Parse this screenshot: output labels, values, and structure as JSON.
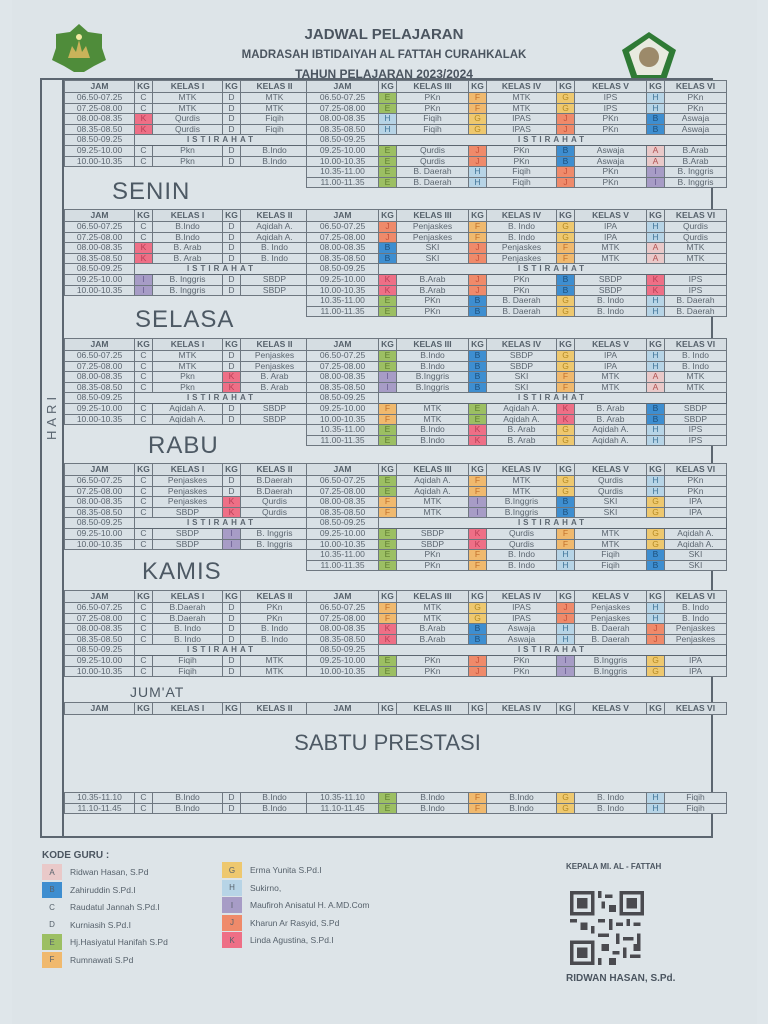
{
  "header": {
    "title": "JADWAL PELAJARAN",
    "school": "MADRASAH IBTIDAIYAH AL FATTAH CURAHKALAK",
    "year": "TAHUN PELAJARAN 2023/2024",
    "logo_left": "kemenag-style-logo",
    "logo_right": "school-crest-logo"
  },
  "side_label": "HARI",
  "columns_left": [
    "JAM",
    "KG",
    "KELAS I",
    "KG",
    "KELAS II"
  ],
  "columns_right": [
    "JAM",
    "KG",
    "KELAS III",
    "KG",
    "KELAS IV",
    "KG",
    "KELAS V",
    "KG",
    "KELAS VI"
  ],
  "break_label": "ISTIRAHAT",
  "days": [
    {
      "name": "SENIN",
      "left_rows": [
        [
          "06.50-07.25",
          "C",
          "MTK",
          "D",
          "MTK"
        ],
        [
          "07.25-08.00",
          "C",
          "MTK",
          "D",
          "MTK"
        ],
        [
          "08.00-08.35",
          "K",
          "Qurdis",
          "D",
          "Fiqih"
        ],
        [
          "08.35-08.50",
          "K",
          "Qurdis",
          "D",
          "Fiqih"
        ],
        [
          "08.50-09.25",
          "BREAK",
          "",
          "",
          ""
        ],
        [
          "09.25-10.00",
          "C",
          "Pkn",
          "D",
          "B.Indo"
        ],
        [
          "10.00-10.35",
          "C",
          "Pkn",
          "D",
          "B.Indo"
        ]
      ],
      "right_rows": [
        [
          "06.50-07.25",
          "E",
          "PKn",
          "F",
          "MTK",
          "G",
          "IPS",
          "H",
          "PKn"
        ],
        [
          "07.25-08.00",
          "E",
          "PKn",
          "F",
          "MTK",
          "G",
          "IPS",
          "H",
          "PKn"
        ],
        [
          "08.00-08.35",
          "H",
          "Fiqih",
          "G",
          "IPAS",
          "J",
          "PKn",
          "B",
          "Aswaja"
        ],
        [
          "08.35-08.50",
          "H",
          "Fiqih",
          "G",
          "IPAS",
          "J",
          "PKn",
          "B",
          "Aswaja"
        ],
        [
          "08.50-09.25",
          "BREAK",
          "",
          "",
          "",
          "",
          "",
          "",
          ""
        ],
        [
          "09.25-10.00",
          "E",
          "Qurdis",
          "J",
          "PKn",
          "B",
          "Aswaja",
          "A",
          "B.Arab"
        ],
        [
          "10.00-10.35",
          "E",
          "Qurdis",
          "J",
          "PKn",
          "B",
          "Aswaja",
          "A",
          "B.Arab"
        ],
        [
          "10.35-11.00",
          "E",
          "B. Daerah",
          "H",
          "Fiqih",
          "J",
          "PKn",
          "I",
          "B. Inggris"
        ],
        [
          "11.00-11.35",
          "E",
          "B. Daerah",
          "H",
          "Fiqih",
          "J",
          "PKn",
          "I",
          "B. Inggris"
        ]
      ]
    },
    {
      "name": "SELASA",
      "left_rows": [
        [
          "06.50-07.25",
          "C",
          "B.Indo",
          "D",
          "Aqidah A."
        ],
        [
          "07.25-08.00",
          "C",
          "B.Indo",
          "D",
          "Aqidah A."
        ],
        [
          "08.00-08.35",
          "K",
          "B. Arab",
          "D",
          "B. Indo"
        ],
        [
          "08.35-08.50",
          "K",
          "B. Arab",
          "D",
          "B. Indo"
        ],
        [
          "08.50-09.25",
          "BREAK",
          "",
          "",
          ""
        ],
        [
          "09.25-10.00",
          "I",
          "B. Inggris",
          "D",
          "SBDP"
        ],
        [
          "10.00-10.35",
          "I",
          "B. Inggris",
          "D",
          "SBDP"
        ]
      ],
      "right_rows": [
        [
          "06.50-07.25",
          "J",
          "Penjaskes",
          "F",
          "B. Indo",
          "G",
          "IPA",
          "H",
          "Qurdis"
        ],
        [
          "07.25-08.00",
          "J",
          "Penjaskes",
          "F",
          "B. Indo",
          "G",
          "IPA",
          "H",
          "Qurdis"
        ],
        [
          "08.00-08.35",
          "B",
          "SKI",
          "J",
          "Penjaskes",
          "F",
          "MTK",
          "A",
          "MTK"
        ],
        [
          "08.35-08.50",
          "B",
          "SKI",
          "J",
          "Penjaskes",
          "F",
          "MTK",
          "A",
          "MTK"
        ],
        [
          "08.50-09.25",
          "BREAK",
          "",
          "",
          "",
          "",
          "",
          "",
          ""
        ],
        [
          "09.25-10.00",
          "K",
          "B.Arab",
          "J",
          "PKn",
          "B",
          "SBDP",
          "K",
          "IPS"
        ],
        [
          "10.00-10.35",
          "K",
          "B.Arab",
          "J",
          "PKn",
          "B",
          "SBDP",
          "K",
          "IPS"
        ],
        [
          "10.35-11.00",
          "E",
          "PKn",
          "B",
          "B. Daerah",
          "G",
          "B. Indo",
          "H",
          "B. Daerah"
        ],
        [
          "11.00-11.35",
          "E",
          "PKn",
          "B",
          "B. Daerah",
          "G",
          "B. Indo",
          "H",
          "B. Daerah"
        ]
      ]
    },
    {
      "name": "RABU",
      "left_rows": [
        [
          "06.50-07.25",
          "C",
          "MTK",
          "D",
          "Penjaskes"
        ],
        [
          "07.25-08.00",
          "C",
          "MTK",
          "D",
          "Penjaskes"
        ],
        [
          "08.00-08.35",
          "C",
          "Pkn",
          "K",
          "B. Arab"
        ],
        [
          "08.35-08.50",
          "C",
          "Pkn",
          "K",
          "B. Arab"
        ],
        [
          "08.50-09.25",
          "BREAK",
          "",
          "",
          ""
        ],
        [
          "09.25-10.00",
          "C",
          "Aqidah A.",
          "D",
          "SBDP"
        ],
        [
          "10.00-10.35",
          "C",
          "Aqidah A.",
          "D",
          "SBDP"
        ]
      ],
      "right_rows": [
        [
          "06.50-07.25",
          "E",
          "B.Indo",
          "B",
          "SBDP",
          "G",
          "IPA",
          "H",
          "B. Indo"
        ],
        [
          "07.25-08.00",
          "E",
          "B.Indo",
          "B",
          "SBDP",
          "G",
          "IPA",
          "H",
          "B. Indo"
        ],
        [
          "08.00-08.35",
          "I",
          "B.Inggris",
          "B",
          "SKI",
          "F",
          "MTK",
          "A",
          "MTK"
        ],
        [
          "08.35-08.50",
          "I",
          "B.Inggris",
          "B",
          "SKI",
          "F",
          "MTK",
          "A",
          "MTK"
        ],
        [
          "08.50-09.25",
          "BREAK",
          "",
          "",
          "",
          "",
          "",
          "",
          ""
        ],
        [
          "09.25-10.00",
          "F",
          "MTK",
          "E",
          "Aqidah A.",
          "K",
          "B. Arab",
          "B",
          "SBDP"
        ],
        [
          "10.00-10.35",
          "F",
          "MTK",
          "E",
          "Aqidah A.",
          "K",
          "B. Arab",
          "B",
          "SBDP"
        ],
        [
          "10.35-11.00",
          "E",
          "B.Indo",
          "K",
          "B. Arab",
          "G",
          "Aqidah A.",
          "H",
          "IPS"
        ],
        [
          "11.00-11.35",
          "E",
          "B.Indo",
          "K",
          "B. Arab",
          "G",
          "Aqidah A.",
          "H",
          "IPS"
        ]
      ]
    },
    {
      "name": "KAMIS",
      "left_rows": [
        [
          "06.50-07.25",
          "C",
          "Penjaskes",
          "D",
          "B.Daerah"
        ],
        [
          "07.25-08.00",
          "C",
          "Penjaskes",
          "D",
          "B.Daerah"
        ],
        [
          "08.00-08.35",
          "C",
          "Penjaskes",
          "K",
          "Qurdis"
        ],
        [
          "08.35-08.50",
          "C",
          "SBDP",
          "K",
          "Qurdis"
        ],
        [
          "08.50-09.25",
          "BREAK",
          "",
          "",
          ""
        ],
        [
          "09.25-10.00",
          "C",
          "SBDP",
          "I",
          "B. Inggris"
        ],
        [
          "10.00-10.35",
          "C",
          "SBDP",
          "I",
          "B. Inggris"
        ]
      ],
      "right_rows": [
        [
          "06.50-07.25",
          "E",
          "Aqidah A.",
          "F",
          "MTK",
          "G",
          "Qurdis",
          "H",
          "PKn"
        ],
        [
          "07.25-08.00",
          "E",
          "Aqidah A.",
          "F",
          "MTK",
          "G",
          "Qurdis",
          "H",
          "PKn"
        ],
        [
          "08.00-08.35",
          "F",
          "MTK",
          "I",
          "B.Inggris",
          "B",
          "SKI",
          "G",
          "IPA"
        ],
        [
          "08.35-08.50",
          "F",
          "MTK",
          "I",
          "B.Inggris",
          "B",
          "SKI",
          "G",
          "IPA"
        ],
        [
          "08.50-09.25",
          "BREAK",
          "",
          "",
          "",
          "",
          "",
          "",
          ""
        ],
        [
          "09.25-10.00",
          "E",
          "SBDP",
          "K",
          "Qurdis",
          "F",
          "MTK",
          "G",
          "Aqidah A."
        ],
        [
          "10.00-10.35",
          "E",
          "SBDP",
          "K",
          "Qurdis",
          "F",
          "MTK",
          "G",
          "Aqidah A."
        ],
        [
          "10.35-11.00",
          "E",
          "PKn",
          "F",
          "B. Indo",
          "H",
          "Fiqih",
          "B",
          "SKI"
        ],
        [
          "11.00-11.35",
          "E",
          "PKn",
          "F",
          "B. Indo",
          "H",
          "Fiqih",
          "B",
          "SKI"
        ]
      ]
    },
    {
      "name": "JUM'AT",
      "left_rows": [
        [
          "06.50-07.25",
          "C",
          "B.Daerah",
          "D",
          "PKn"
        ],
        [
          "07.25-08.00",
          "C",
          "B.Daerah",
          "D",
          "PKn"
        ],
        [
          "08.00-08.35",
          "C",
          "B. Indo",
          "D",
          "B. Indo"
        ],
        [
          "08.35-08.50",
          "C",
          "B. Indo",
          "D",
          "B. Indo"
        ],
        [
          "08.50-09.25",
          "BREAK",
          "",
          "",
          ""
        ],
        [
          "09.25-10.00",
          "C",
          "Fiqih",
          "D",
          "MTK"
        ],
        [
          "10.00-10.35",
          "C",
          "Fiqih",
          "D",
          "MTK"
        ]
      ],
      "right_rows": [
        [
          "06.50-07.25",
          "F",
          "MTK",
          "G",
          "IPAS",
          "J",
          "Penjaskes",
          "H",
          "B. Indo"
        ],
        [
          "07.25-08.00",
          "F",
          "MTK",
          "G",
          "IPAS",
          "J",
          "Penjaskes",
          "H",
          "B. Indo"
        ],
        [
          "08.00-08.35",
          "K",
          "B.Arab",
          "B",
          "Aswaja",
          "H",
          "B. Daerah",
          "J",
          "Penjaskes"
        ],
        [
          "08.35-08.50",
          "K",
          "B.Arab",
          "B",
          "Aswaja",
          "H",
          "B. Daerah",
          "J",
          "Penjaskes"
        ],
        [
          "08.50-09.25",
          "BREAK",
          "",
          "",
          "",
          "",
          "",
          "",
          ""
        ],
        [
          "09.25-10.00",
          "E",
          "PKn",
          "J",
          "PKn",
          "I",
          "B.Inggris",
          "G",
          "IPA"
        ],
        [
          "10.00-10.35",
          "E",
          "PKn",
          "J",
          "PKn",
          "I",
          "B.Inggris",
          "G",
          "IPA"
        ]
      ]
    }
  ],
  "saturday": {
    "name": "SABTU PRESTASI",
    "left_rows": [
      [
        "10.35-11.10",
        "C",
        "B.Indo",
        "D",
        "B.Indo"
      ],
      [
        "11.10-11.45",
        "C",
        "B.Indo",
        "D",
        "B.Indo"
      ]
    ],
    "right_rows": [
      [
        "10.35-11.10",
        "E",
        "B.Indo",
        "F",
        "B.Indo",
        "G",
        "B. Indo",
        "H",
        "Fiqih"
      ],
      [
        "11.10-11.45",
        "E",
        "B.Indo",
        "F",
        "B.Indo",
        "G",
        "B. Indo",
        "H",
        "Fiqih"
      ]
    ]
  },
  "legend": {
    "title": "KODE GURU :",
    "items": [
      {
        "code": "A",
        "name": "Ridwan Hasan, S.Pd",
        "color": "#e9c9c9"
      },
      {
        "code": "B",
        "name": "Zahiruddin S.Pd.I",
        "color": "#3e8ed0"
      },
      {
        "code": "C",
        "name": "Raudatul Jannah S.Pd.I",
        "color": "#dde4e8"
      },
      {
        "code": "D",
        "name": "Kurniasih S.Pd.I",
        "color": "#dde4e8"
      },
      {
        "code": "E",
        "name": "Hj.Hasiyatul Hanifah S.Pd",
        "color": "#9cbf63"
      },
      {
        "code": "F",
        "name": "Rumnawati S.Pd",
        "color": "#f0b96e"
      },
      {
        "code": "G",
        "name": "Erma Yunita S.Pd.I",
        "color": "#eec86f"
      },
      {
        "code": "H",
        "name": "Sukirno,",
        "color": "#b7d4e6"
      },
      {
        "code": "I",
        "name": "Maufiroh Anisatul H. A.MD.Com",
        "color": "#a79cc6"
      },
      {
        "code": "J",
        "name": "Kharun Ar Rasyid, S.Pd",
        "color": "#ef8a6a"
      },
      {
        "code": "K",
        "name": "Linda Agustina, S.Pd.I",
        "color": "#ee6f86"
      }
    ]
  },
  "signature": {
    "title": "KEPALA MI. AL - FATTAH",
    "name": "RIDWAN HASAN, S.Pd."
  }
}
